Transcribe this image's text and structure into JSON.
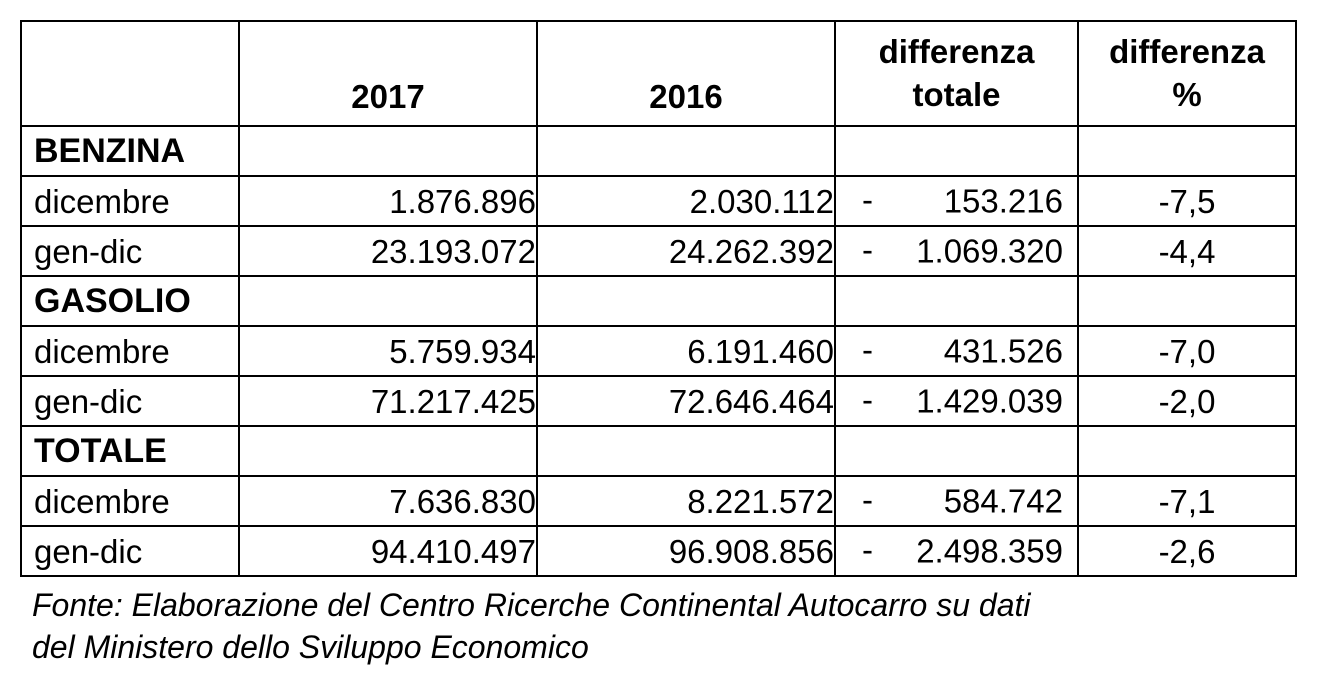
{
  "table": {
    "headers": [
      "",
      "2017",
      "2016",
      "differenza totale",
      "differenza %"
    ],
    "header_lines": {
      "diff_total": [
        "differenza",
        "totale"
      ],
      "diff_pct": [
        "differenza",
        "%"
      ]
    },
    "sections": [
      {
        "title": "BENZINA",
        "rows": [
          {
            "label": "dicembre",
            "y2017": "1.876.896",
            "y2016": "2.030.112",
            "diff_sign": "-",
            "diff_total": "153.216",
            "diff_pct": "-7,5"
          },
          {
            "label": "gen-dic",
            "y2017": "23.193.072",
            "y2016": "24.262.392",
            "diff_sign": "-",
            "diff_total": "1.069.320",
            "diff_pct": "-4,4"
          }
        ]
      },
      {
        "title": "GASOLIO",
        "rows": [
          {
            "label": "dicembre",
            "y2017": "5.759.934",
            "y2016": "6.191.460",
            "diff_sign": "-",
            "diff_total": "431.526",
            "diff_pct": "-7,0"
          },
          {
            "label": "gen-dic",
            "y2017": "71.217.425",
            "y2016": "72.646.464",
            "diff_sign": "-",
            "diff_total": "1.429.039",
            "diff_pct": "-2,0"
          }
        ]
      },
      {
        "title": "TOTALE",
        "rows": [
          {
            "label": "dicembre",
            "y2017": "7.636.830",
            "y2016": "8.221.572",
            "diff_sign": "-",
            "diff_total": "584.742",
            "diff_pct": "-7,1"
          },
          {
            "label": "gen-dic",
            "y2017": "94.410.497",
            "y2016": "96.908.856",
            "diff_sign": "-",
            "diff_total": "2.498.359",
            "diff_pct": "-2,6"
          }
        ]
      }
    ]
  },
  "source_lines": [
    "Fonte: Elaborazione del Centro Ricerche Continental Autocarro su dati",
    "del Ministero dello Sviluppo Economico"
  ]
}
